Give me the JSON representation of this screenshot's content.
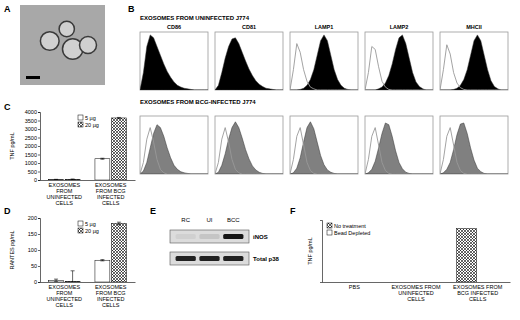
{
  "chart_data": [
    {
      "type": "image",
      "panel": "A"
    },
    {
      "type": "histograms",
      "panel": "B",
      "tick_labels": false,
      "xlim": [
        0,
        100
      ],
      "ylim": [
        0,
        100
      ],
      "x": [
        0,
        5,
        10,
        15,
        20,
        25,
        30,
        35,
        40,
        45,
        50,
        55,
        60,
        65,
        70,
        75,
        80,
        85,
        90,
        95,
        100
      ],
      "rows": [
        {
          "title": "EXOSOMES FROM UNINFECTED J774",
          "panels": [
            {
              "title": "CD86",
              "series": [
                {
                  "type": "area",
                  "color": "#000000",
                  "values": [
                    0,
                    30,
                    75,
                    95,
                    90,
                    75,
                    60,
                    45,
                    32,
                    22,
                    14,
                    8,
                    5,
                    3,
                    2,
                    1,
                    0,
                    0,
                    0,
                    0,
                    0
                  ]
                }
              ]
            },
            {
              "title": "CD81",
              "series": [
                {
                  "type": "area",
                  "color": "#000000",
                  "values": [
                    0,
                    8,
                    30,
                    55,
                    75,
                    88,
                    90,
                    80,
                    65,
                    50,
                    36,
                    25,
                    16,
                    10,
                    6,
                    3,
                    2,
                    1,
                    0,
                    0,
                    0
                  ]
                }
              ]
            },
            {
              "title": "LAMP1",
              "series": [
                {
                  "type": "area",
                  "color": "#000000",
                  "values": [
                    0,
                    0,
                    0,
                    1,
                    3,
                    8,
                    18,
                    35,
                    60,
                    85,
                    95,
                    85,
                    60,
                    35,
                    18,
                    8,
                    3,
                    1,
                    0,
                    0,
                    0
                  ]
                },
                {
                  "type": "line",
                  "color": "#999999",
                  "values": [
                    0,
                    35,
                    80,
                    65,
                    35,
                    15,
                    5,
                    2,
                    0,
                    0,
                    0,
                    0,
                    0,
                    0,
                    0,
                    0,
                    0,
                    0,
                    0,
                    0,
                    0
                  ]
                }
              ]
            },
            {
              "title": "LAMP2",
              "series": [
                {
                  "type": "area",
                  "color": "#000000",
                  "values": [
                    0,
                    0,
                    0,
                    0,
                    2,
                    5,
                    12,
                    25,
                    45,
                    70,
                    90,
                    95,
                    80,
                    55,
                    30,
                    14,
                    6,
                    2,
                    0,
                    0,
                    0
                  ]
                },
                {
                  "type": "line",
                  "color": "#999999",
                  "values": [
                    0,
                    30,
                    75,
                    70,
                    40,
                    15,
                    5,
                    1,
                    0,
                    0,
                    0,
                    0,
                    0,
                    0,
                    0,
                    0,
                    0,
                    0,
                    0,
                    0,
                    0
                  ]
                }
              ]
            },
            {
              "title": "MHCII",
              "series": [
                {
                  "type": "area",
                  "color": "#000000",
                  "values": [
                    0,
                    0,
                    0,
                    0,
                    1,
                    3,
                    8,
                    18,
                    35,
                    60,
                    85,
                    95,
                    85,
                    60,
                    35,
                    16,
                    6,
                    2,
                    0,
                    0,
                    0
                  ]
                },
                {
                  "type": "line",
                  "color": "#999999",
                  "values": [
                    0,
                    35,
                    78,
                    62,
                    30,
                    12,
                    4,
                    1,
                    0,
                    0,
                    0,
                    0,
                    0,
                    0,
                    0,
                    0,
                    0,
                    0,
                    0,
                    0,
                    0
                  ]
                }
              ]
            }
          ]
        },
        {
          "title": "EXOSOMES FROM BCG-INFECTED J774",
          "panels": [
            {
              "series": [
                {
                  "type": "area",
                  "color": "#808080",
                  "values": [
                    0,
                    5,
                    20,
                    45,
                    70,
                    85,
                    80,
                    65,
                    45,
                    28,
                    15,
                    8,
                    4,
                    2,
                    1,
                    0,
                    0,
                    0,
                    0,
                    0,
                    0
                  ]
                },
                {
                  "type": "line",
                  "color": "#999999",
                  "values": [
                    0,
                    20,
                    60,
                    80,
                    55,
                    25,
                    8,
                    2,
                    0,
                    0,
                    0,
                    0,
                    0,
                    0,
                    0,
                    0,
                    0,
                    0,
                    0,
                    0,
                    0
                  ]
                }
              ]
            },
            {
              "series": [
                {
                  "type": "area",
                  "color": "#808080",
                  "values": [
                    0,
                    3,
                    15,
                    35,
                    60,
                    80,
                    90,
                    80,
                    62,
                    42,
                    26,
                    14,
                    7,
                    3,
                    1,
                    0,
                    0,
                    0,
                    0,
                    0,
                    0
                  ]
                },
                {
                  "type": "line",
                  "color": "#999999",
                  "values": [
                    0,
                    20,
                    60,
                    80,
                    55,
                    25,
                    8,
                    2,
                    0,
                    0,
                    0,
                    0,
                    0,
                    0,
                    0,
                    0,
                    0,
                    0,
                    0,
                    0,
                    0
                  ]
                }
              ]
            },
            {
              "series": [
                {
                  "type": "area",
                  "color": "#808080",
                  "values": [
                    0,
                    2,
                    10,
                    28,
                    55,
                    80,
                    90,
                    78,
                    55,
                    32,
                    16,
                    7,
                    3,
                    1,
                    0,
                    0,
                    0,
                    0,
                    0,
                    0,
                    0
                  ]
                },
                {
                  "type": "line",
                  "color": "#999999",
                  "values": [
                    0,
                    25,
                    65,
                    80,
                    50,
                    20,
                    6,
                    1,
                    0,
                    0,
                    0,
                    0,
                    0,
                    0,
                    0,
                    0,
                    0,
                    0,
                    0,
                    0,
                    0
                  ]
                }
              ]
            },
            {
              "series": [
                {
                  "type": "area",
                  "color": "#808080",
                  "values": [
                    0,
                    2,
                    8,
                    22,
                    45,
                    70,
                    88,
                    85,
                    65,
                    40,
                    20,
                    9,
                    3,
                    1,
                    0,
                    0,
                    0,
                    0,
                    0,
                    0,
                    0
                  ]
                },
                {
                  "type": "line",
                  "color": "#999999",
                  "values": [
                    0,
                    25,
                    65,
                    80,
                    50,
                    20,
                    6,
                    1,
                    0,
                    0,
                    0,
                    0,
                    0,
                    0,
                    0,
                    0,
                    0,
                    0,
                    0,
                    0,
                    0
                  ]
                }
              ]
            },
            {
              "series": [
                {
                  "type": "area",
                  "color": "#808080",
                  "values": [
                    0,
                    2,
                    8,
                    20,
                    42,
                    68,
                    86,
                    88,
                    70,
                    45,
                    24,
                    10,
                    4,
                    1,
                    0,
                    0,
                    0,
                    0,
                    0,
                    0,
                    0
                  ]
                },
                {
                  "type": "line",
                  "color": "#999999",
                  "values": [
                    0,
                    25,
                    65,
                    80,
                    50,
                    20,
                    6,
                    1,
                    0,
                    0,
                    0,
                    0,
                    0,
                    0,
                    0,
                    0,
                    0,
                    0,
                    0,
                    0,
                    0
                  ]
                }
              ]
            }
          ]
        }
      ]
    },
    {
      "type": "bar",
      "panel": "C",
      "ylabel": "TNF pg/mL",
      "categories": [
        "EXOSOMES FROM UNINFECTED CELLS",
        "EXOSOMES FROM BCG INFECTED CELLS"
      ],
      "series": [
        {
          "name": "5 µg",
          "color": "#ffffff",
          "values": [
            25,
            1250
          ],
          "errors": [
            15,
            30
          ]
        },
        {
          "name": "20 µg",
          "color": "#000000",
          "marker": "crosshatch",
          "values": [
            40,
            3650
          ],
          "errors": [
            20,
            30
          ]
        }
      ],
      "ylim": [
        0,
        4000
      ],
      "yticks": [
        0,
        500,
        1000,
        1500,
        2000,
        2500,
        3000,
        3500,
        4000
      ],
      "legend": "upper center"
    },
    {
      "type": "bar",
      "panel": "D",
      "ylabel": "RANTES pg/mL",
      "categories": [
        "EXOSOMES FROM UNINFECTED CELLS",
        "EXOSOMES FROM BCG INFECTED CELLS"
      ],
      "series": [
        {
          "name": "5 µg",
          "color": "#ffffff",
          "values": [
            5,
            68
          ],
          "errors": [
            4,
            2
          ]
        },
        {
          "name": "20 µg",
          "color": "#000000",
          "marker": "crosshatch",
          "values": [
            2,
            183
          ],
          "errors": [
            33,
            4
          ]
        }
      ],
      "ylim": [
        0,
        200
      ],
      "yticks": [
        0,
        50,
        100,
        150,
        200
      ],
      "legend": "upper center"
    },
    {
      "type": "blot",
      "panel": "E",
      "lanes": [
        "RC",
        "UI",
        "BCC"
      ],
      "bands": [
        {
          "name": "iNOS",
          "values": [
            0.05,
            0.1,
            0.9
          ]
        },
        {
          "name": "Total p38",
          "values": [
            0.85,
            0.85,
            0.85
          ]
        }
      ]
    },
    {
      "type": "bar",
      "panel": "F",
      "ylabel": "TNF pg/mL",
      "categories": [
        "PBS",
        "EXOSOMES FROM UNINFECTED CELLS",
        "EXOSOMES FROM BCG INFECTED CELLS"
      ],
      "series": [
        {
          "name": "No treatment",
          "color": "#000000",
          "marker": "crosshatch",
          "values": [
            0,
            0,
            860
          ]
        },
        {
          "name": "Bead Depleted",
          "color": "#ffffff",
          "values": [
            0,
            0,
            0
          ]
        }
      ],
      "ylim": [
        0,
        1000
      ],
      "tick_labels": false,
      "legend": "upper left"
    }
  ]
}
